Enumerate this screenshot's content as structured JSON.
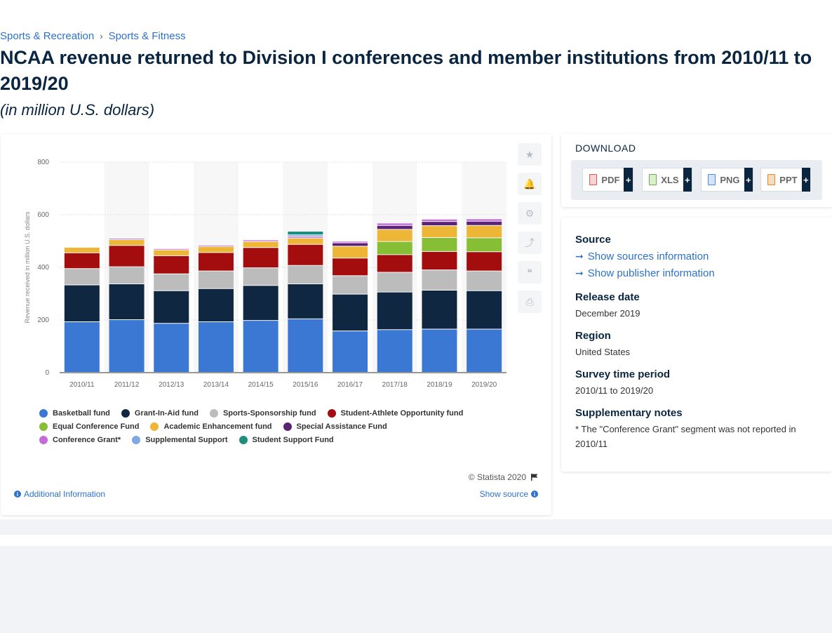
{
  "breadcrumb": {
    "item1": "Sports & Recreation",
    "separator": "›",
    "item2": "Sports & Fitness"
  },
  "title": "NCAA revenue returned to Division I conferences and member institutions from 2010/11 to 2019/20",
  "subtitle": "(in million U.S. dollars)",
  "chart_data": {
    "type": "bar",
    "stacked": true,
    "ylabel": "Revenue received in million U.S. dollars",
    "ylim": [
      0,
      800
    ],
    "yticks": [
      0,
      200,
      400,
      600,
      800
    ],
    "grid": true,
    "legend_position": "bottom",
    "categories": [
      "2010/11",
      "2011/12",
      "2012/13",
      "2013/14",
      "2014/15",
      "2015/16",
      "2016/17",
      "2017/18",
      "2018/19",
      "2019/20"
    ],
    "series": [
      {
        "name": "Basketball fund",
        "color": "#3a78d4",
        "values": [
          192,
          200,
          186,
          192,
          197,
          203,
          157,
          162,
          164,
          164
        ]
      },
      {
        "name": "Grant-In-Aid fund",
        "color": "#0f2740",
        "values": [
          140,
          136,
          124,
          126,
          133,
          133,
          140,
          143,
          148,
          146
        ]
      },
      {
        "name": "Sports-Sponsorship fund",
        "color": "#bcbcbc",
        "values": [
          62,
          65,
          64,
          67,
          67,
          70,
          70,
          75,
          77,
          75
        ]
      },
      {
        "name": "Student-Athlete Opportunity fund",
        "color": "#a30d0d",
        "values": [
          60,
          81,
          69,
          70,
          77,
          80,
          67,
          67,
          70,
          73
        ]
      },
      {
        "name": "Equal Conference Fund",
        "color": "#86bf36",
        "values": [
          0,
          0,
          0,
          0,
          0,
          0,
          0,
          50,
          53,
          53
        ]
      },
      {
        "name": "Academic Enhancement fund",
        "color": "#edb637",
        "values": [
          21,
          22,
          22,
          23,
          23,
          24,
          45,
          46,
          45,
          47
        ]
      },
      {
        "name": "Special Assistance Fund",
        "color": "#5b2375",
        "values": [
          0,
          0,
          0,
          0,
          0,
          0,
          13,
          15,
          16,
          16
        ]
      },
      {
        "name": "Conference Grant*",
        "color": "#c56bd9",
        "values": [
          0,
          5,
          5,
          5,
          6,
          6,
          6,
          9,
          9,
          9
        ]
      },
      {
        "name": "Supplemental Support",
        "color": "#7fa6e6",
        "values": [
          0,
          0,
          0,
          0,
          0,
          6,
          0,
          0,
          0,
          0
        ]
      },
      {
        "name": "Student Support Fund",
        "color": "#1e8f7d",
        "values": [
          0,
          0,
          0,
          0,
          0,
          14,
          0,
          0,
          0,
          0
        ]
      }
    ]
  },
  "tools": {
    "star": "★",
    "bell": "🔔",
    "gear": "⚙",
    "share": "⤴",
    "quote": "❝",
    "print": "⎙"
  },
  "footer": {
    "copyright": "© Statista 2020",
    "additional_info": "Additional Information",
    "show_source": "Show source"
  },
  "download": {
    "title": "DOWNLOAD",
    "buttons": [
      {
        "label": "PDF",
        "color": "#e2574c"
      },
      {
        "label": "XLS",
        "color": "#6dae48"
      },
      {
        "label": "PNG",
        "color": "#4a8fd4"
      },
      {
        "label": "PPT",
        "color": "#e98a2a"
      }
    ],
    "plus": "+"
  },
  "info": {
    "source_label": "Source",
    "show_sources": "Show sources information",
    "show_publisher": "Show publisher information",
    "release_label": "Release date",
    "release_value": "December 2019",
    "region_label": "Region",
    "region_value": "United States",
    "survey_label": "Survey time period",
    "survey_value": "2010/11 to 2019/20",
    "notes_label": "Supplementary notes",
    "notes_value": "* The \"Conference Grant\" segment was not reported in 2010/11"
  }
}
